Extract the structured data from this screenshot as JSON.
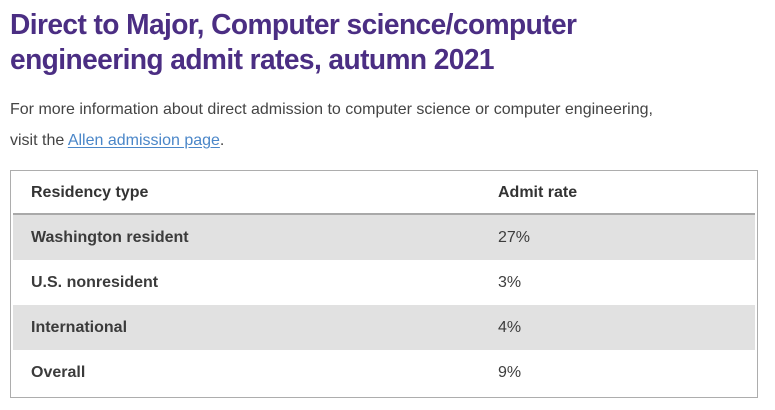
{
  "heading": {
    "lines": [
      "Direct to Major, Computer science/computer",
      "engineering admit rates, autumn 2021"
    ],
    "color": "#4b2e83"
  },
  "intro": {
    "line1": "For more information about direct admission to computer science or computer engineering,",
    "line2_before_link": "visit the ",
    "link_text": "Allen admission page",
    "line2_after_link": ".",
    "link_color": "#4a86c8"
  },
  "table": {
    "columns": [
      "Residency type",
      "Admit rate"
    ],
    "rows": [
      {
        "label": "Washington resident",
        "value": "27%"
      },
      {
        "label": "U.S. nonresident",
        "value": "3%"
      },
      {
        "label": "International",
        "value": "4%"
      },
      {
        "label": "Overall",
        "value": "9%"
      }
    ],
    "stripe_color": "#e1e1e1",
    "border_color": "#adadad"
  }
}
